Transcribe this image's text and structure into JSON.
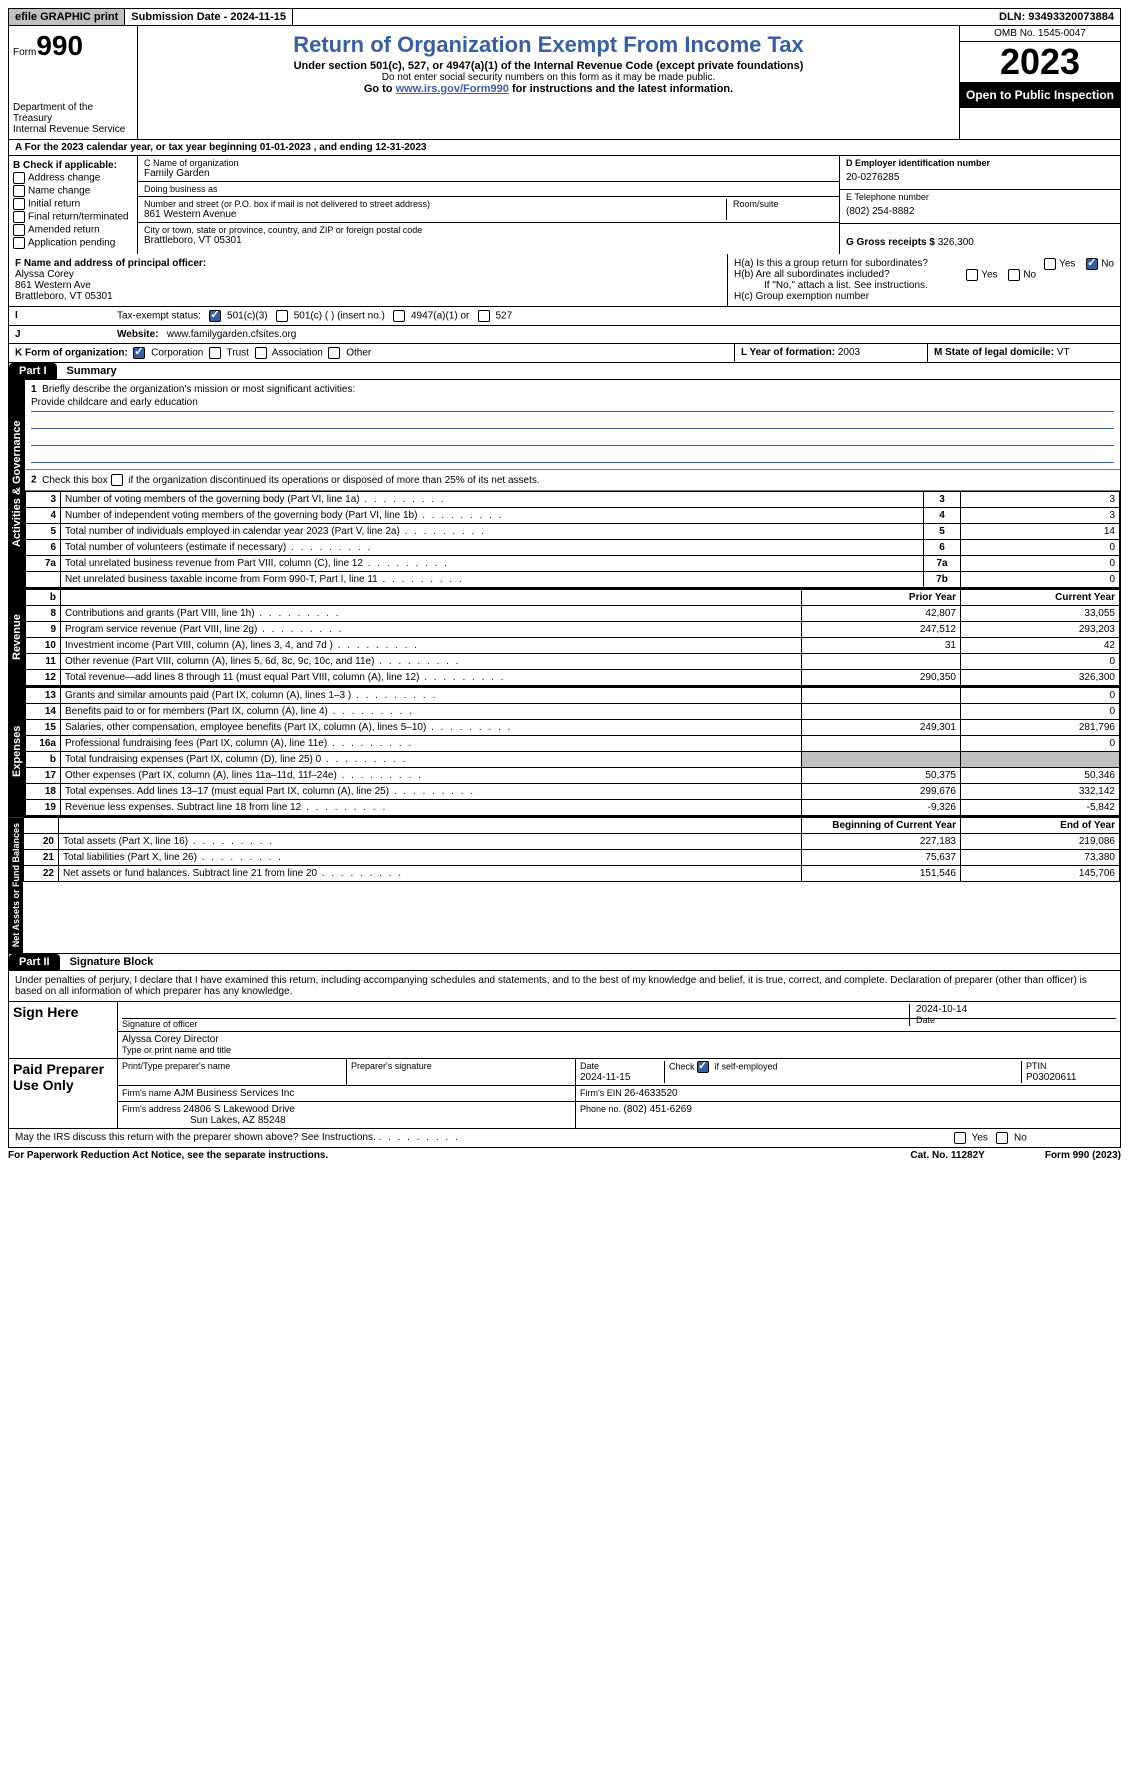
{
  "topbar": {
    "graphic_print": "efile GRAPHIC print",
    "submission_label": "Submission Date - ",
    "submission_date": "2024-11-15",
    "dln_label": "DLN: ",
    "dln": "93493320073884"
  },
  "header": {
    "form_word": "Form",
    "form_num": "990",
    "dept": "Department of the Treasury\nInternal Revenue Service",
    "title": "Return of Organization Exempt From Income Tax",
    "sub1": "Under section 501(c), 527, or 4947(a)(1) of the Internal Revenue Code (except private foundations)",
    "sub2": "Do not enter social security numbers on this form as it may be made public.",
    "sub3_pre": "Go to ",
    "sub3_link": "www.irs.gov/Form990",
    "sub3_post": " for instructions and the latest information.",
    "omb": "OMB No. 1545-0047",
    "year": "2023",
    "opi": "Open to Public Inspection"
  },
  "lineA": {
    "text_pre": "A For the 2023 calendar year, or tax year beginning ",
    "begin": "01-01-2023",
    "mid": "   , and ending ",
    "end": "12-31-2023"
  },
  "B": {
    "label": "B Check if applicable:",
    "items": [
      "Address change",
      "Name change",
      "Initial return",
      "Final return/terminated",
      "Amended return",
      "Application pending"
    ]
  },
  "C": {
    "name_lbl": "C Name of organization",
    "name": "Family Garden",
    "dba_lbl": "Doing business as",
    "dba": "",
    "street_lbl": "Number and street (or P.O. box if mail is not delivered to street address)",
    "street": "861 Western Avenue",
    "room_lbl": "Room/suite",
    "room": "",
    "city_lbl": "City or town, state or province, country, and ZIP or foreign postal code",
    "city": "Brattleboro, VT  05301"
  },
  "D": {
    "lbl": "D Employer identification number",
    "val": "20-0276285"
  },
  "E": {
    "lbl": "E Telephone number",
    "val": "(802) 254-8882"
  },
  "G": {
    "lbl": "G Gross receipts $ ",
    "val": "326,300"
  },
  "F": {
    "lbl": "F  Name and address of principal officer:",
    "name": "Alyssa Corey",
    "street": "861 Western Ave",
    "city": "Brattleboro, VT  05301"
  },
  "H": {
    "a": "H(a)  Is this a group return for subordinates?",
    "a_yes": false,
    "a_no": true,
    "b": "H(b)  Are all subordinates included?",
    "b_yes": false,
    "b_no": false,
    "b_note": "If \"No,\" attach a list. See instructions.",
    "c": "H(c)  Group exemption number  "
  },
  "I": {
    "label": "Tax-exempt status:",
    "c3": true,
    "c_other": false,
    "c_other_txt": "501(c) (   ) (insert no.)",
    "a4947": false,
    "a4947_txt": "4947(a)(1) or",
    "s527": false,
    "s527_txt": "527"
  },
  "J": {
    "label": "Website:",
    "val": "www.familygarden.cfsites.org"
  },
  "K": {
    "label": "K Form of organization:",
    "corp": true,
    "trust": false,
    "assoc": false,
    "other": false
  },
  "L": {
    "label": "L Year of formation: ",
    "val": "2003"
  },
  "M": {
    "label": "M State of legal domicile: ",
    "val": "VT"
  },
  "part1": {
    "hdr": "Part I",
    "title": "Summary",
    "line1_lbl": "Briefly describe the organization's mission or most significant activities:",
    "line1_val": "Provide childcare and early education",
    "line2": "Check this box      if the organization discontinued its operations or disposed of more than 25% of its net assets.",
    "sections": {
      "ag": "Activities & Governance",
      "rev": "Revenue",
      "exp": "Expenses",
      "na": "Net Assets or Fund Balances"
    },
    "ag_lines": [
      {
        "n": "3",
        "d": "Number of voting members of the governing body (Part VI, line 1a)",
        "box": "3",
        "v": "3"
      },
      {
        "n": "4",
        "d": "Number of independent voting members of the governing body (Part VI, line 1b)",
        "box": "4",
        "v": "3"
      },
      {
        "n": "5",
        "d": "Total number of individuals employed in calendar year 2023 (Part V, line 2a)",
        "box": "5",
        "v": "14"
      },
      {
        "n": "6",
        "d": "Total number of volunteers (estimate if necessary)",
        "box": "6",
        "v": "0"
      },
      {
        "n": "7a",
        "d": "Total unrelated business revenue from Part VIII, column (C), line 12",
        "box": "7a",
        "v": "0"
      },
      {
        "n": "",
        "d": "Net unrelated business taxable income from Form 990-T, Part I, line 11",
        "box": "7b",
        "v": "0"
      }
    ],
    "py_hdr": "Prior Year",
    "cy_hdr": "Current Year",
    "rev_lines": [
      {
        "n": "8",
        "d": "Contributions and grants (Part VIII, line 1h)",
        "py": "42,807",
        "cy": "33,055"
      },
      {
        "n": "9",
        "d": "Program service revenue (Part VIII, line 2g)",
        "py": "247,512",
        "cy": "293,203"
      },
      {
        "n": "10",
        "d": "Investment income (Part VIII, column (A), lines 3, 4, and 7d )",
        "py": "31",
        "cy": "42"
      },
      {
        "n": "11",
        "d": "Other revenue (Part VIII, column (A), lines 5, 6d, 8c, 9c, 10c, and 11e)",
        "py": "",
        "cy": "0"
      },
      {
        "n": "12",
        "d": "Total revenue—add lines 8 through 11 (must equal Part VIII, column (A), line 12)",
        "py": "290,350",
        "cy": "326,300"
      }
    ],
    "exp_lines": [
      {
        "n": "13",
        "d": "Grants and similar amounts paid (Part IX, column (A), lines 1–3 )",
        "py": "",
        "cy": "0"
      },
      {
        "n": "14",
        "d": "Benefits paid to or for members (Part IX, column (A), line 4)",
        "py": "",
        "cy": "0"
      },
      {
        "n": "15",
        "d": "Salaries, other compensation, employee benefits (Part IX, column (A), lines 5–10)",
        "py": "249,301",
        "cy": "281,796"
      },
      {
        "n": "16a",
        "d": "Professional fundraising fees (Part IX, column (A), line 11e)",
        "py": "",
        "cy": "0"
      },
      {
        "n": "b",
        "d": "Total fundraising expenses (Part IX, column (D), line 25) 0",
        "py": "SHADE",
        "cy": "SHADE"
      },
      {
        "n": "17",
        "d": "Other expenses (Part IX, column (A), lines 11a–11d, 11f–24e)",
        "py": "50,375",
        "cy": "50,346"
      },
      {
        "n": "18",
        "d": "Total expenses. Add lines 13–17 (must equal Part IX, column (A), line 25)",
        "py": "299,676",
        "cy": "332,142"
      },
      {
        "n": "19",
        "d": "Revenue less expenses. Subtract line 18 from line 12",
        "py": "-9,326",
        "cy": "-5,842"
      }
    ],
    "bcy_hdr": "Beginning of Current Year",
    "eoy_hdr": "End of Year",
    "na_lines": [
      {
        "n": "20",
        "d": "Total assets (Part X, line 16)",
        "py": "227,183",
        "cy": "219,086"
      },
      {
        "n": "21",
        "d": "Total liabilities (Part X, line 26)",
        "py": "75,637",
        "cy": "73,380"
      },
      {
        "n": "22",
        "d": "Net assets or fund balances. Subtract line 21 from line 20",
        "py": "151,546",
        "cy": "145,706"
      }
    ]
  },
  "part2": {
    "hdr": "Part II",
    "title": "Signature Block",
    "decl": "Under penalties of perjury, I declare that I have examined this return, including accompanying schedules and statements, and to the best of my knowledge and belief, it is true, correct, and complete. Declaration of preparer (other than officer) is based on all information of which preparer has any knowledge.",
    "sign_here": "Sign Here",
    "sig_officer_lbl": "Signature of officer",
    "sig_date": "2024-10-14",
    "date_lbl": "Date",
    "officer_name": "Alyssa Corey  Director",
    "officer_name_lbl": "Type or print name and title",
    "paid": "Paid Preparer Use Only",
    "prep_name_lbl": "Print/Type preparer's name",
    "prep_name": "",
    "prep_sig_lbl": "Preparer's signature",
    "prep_date_lbl": "Date",
    "prep_date": "2024-11-15",
    "self_emp_lbl": "Check         if self-employed",
    "self_emp": true,
    "ptin_lbl": "PTIN",
    "ptin": "P03020611",
    "firm_name_lbl": "Firm's name   ",
    "firm_name": "AJM Business Services Inc",
    "firm_ein_lbl": "Firm's EIN  ",
    "firm_ein": "26-4633520",
    "firm_addr_lbl": "Firm's address ",
    "firm_addr1": "24806 S Lakewood Drive",
    "firm_addr2": "Sun Lakes, AZ  85248",
    "firm_phone_lbl": "Phone no. ",
    "firm_phone": "(802) 451-6269",
    "may_irs": "May the IRS discuss this return with the preparer shown above? See Instructions.",
    "may_yes": false,
    "may_no": false
  },
  "footer": {
    "l": "For Paperwork Reduction Act Notice, see the separate instructions.",
    "m": "Cat. No. 11282Y",
    "r": "Form 990 (2023)"
  },
  "colors": {
    "accent": "#3a5fa0",
    "shade": "#c0c0c0"
  }
}
